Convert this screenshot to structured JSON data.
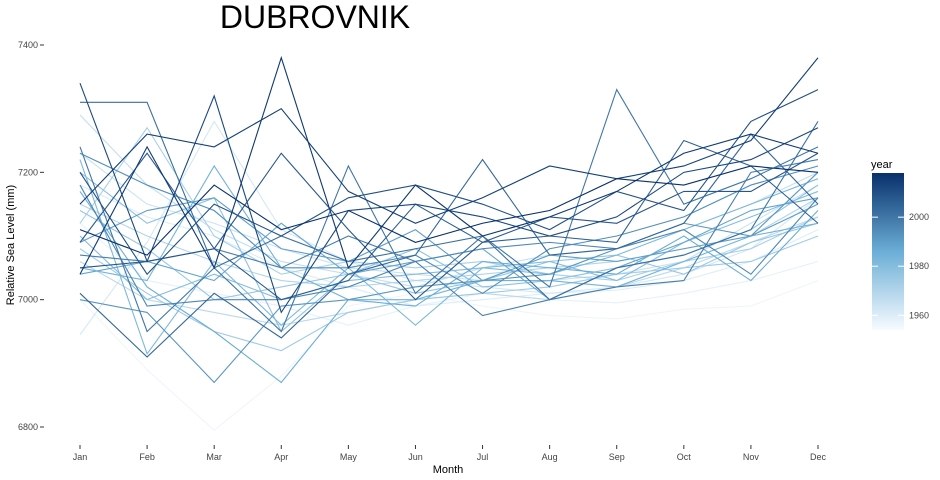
{
  "chart_data": {
    "type": "line",
    "title": "DUBROVNIK",
    "xlabel": "Month",
    "ylabel": "Relative Sea Level (mm)",
    "categories": [
      "Jan",
      "Feb",
      "Mar",
      "Apr",
      "May",
      "Jun",
      "Jul",
      "Aug",
      "Sep",
      "Oct",
      "Nov",
      "Dec"
    ],
    "yticks": [
      6800,
      7000,
      7200,
      7400
    ],
    "ylim": [
      6780,
      7400
    ],
    "grid": false,
    "legend": {
      "title": "year",
      "placement": "right",
      "type": "colorbar",
      "range": [
        1954,
        2018
      ],
      "ticks": [
        1960,
        1980,
        2000
      ],
      "color_low": "#f7fbff",
      "color_high": "#08306b"
    },
    "series": [
      {
        "year": 1956,
        "values": [
          7000,
          6890,
          6795,
          6880,
          6990,
          7010,
          6990,
          6975,
          6970,
          6985,
          6990,
          7030
        ]
      },
      {
        "year": 1958,
        "values": [
          7120,
          7030,
          7010,
          6990,
          6960,
          6990,
          7010,
          7000,
          6995,
          7010,
          7030,
          7060
        ]
      },
      {
        "year": 1960,
        "values": [
          7180,
          7130,
          7100,
          7050,
          7020,
          6990,
          7000,
          7010,
          7015,
          7030,
          7060,
          7110
        ]
      },
      {
        "year": 1962,
        "values": [
          6945,
          7090,
          7280,
          7110,
          7060,
          7030,
          7020,
          7010,
          7020,
          7040,
          7080,
          7160
        ]
      },
      {
        "year": 1964,
        "values": [
          7230,
          7150,
          7120,
          7080,
          7050,
          7040,
          7030,
          7030,
          7040,
          7060,
          7120,
          7180
        ]
      },
      {
        "year": 1966,
        "values": [
          7290,
          7180,
          7110,
          7060,
          7040,
          7020,
          7050,
          7070,
          7080,
          7110,
          7150,
          7200
        ]
      },
      {
        "year": 1968,
        "values": [
          7060,
          7000,
          6980,
          6960,
          6980,
          7000,
          7010,
          7000,
          7020,
          7050,
          7090,
          7130
        ]
      },
      {
        "year": 1970,
        "values": [
          7150,
          7100,
          7060,
          7030,
          7020,
          7030,
          7040,
          7050,
          7060,
          7080,
          7100,
          7160
        ]
      },
      {
        "year": 1972,
        "values": [
          7120,
          7270,
          7100,
          7040,
          7060,
          7050,
          7060,
          7040,
          7030,
          7060,
          7080,
          7130
        ]
      },
      {
        "year": 1974,
        "values": [
          7080,
          7010,
          6950,
          6920,
          6980,
          7000,
          7010,
          7020,
          7040,
          7050,
          7060,
          7100
        ]
      },
      {
        "year": 1976,
        "values": [
          7140,
          7080,
          7000,
          7020,
          7040,
          7010,
          7030,
          7060,
          7070,
          7040,
          7090,
          7120
        ]
      },
      {
        "year": 1978,
        "values": [
          7200,
          7120,
          7160,
          6950,
          7040,
          7080,
          7020,
          7030,
          7050,
          7070,
          7110,
          7180
        ]
      },
      {
        "year": 1980,
        "values": [
          7100,
          7000,
          7040,
          7000,
          7030,
          7040,
          7050,
          7060,
          7030,
          7090,
          7130,
          7170
        ]
      },
      {
        "year": 1982,
        "values": [
          7220,
          6915,
          7060,
          6960,
          7050,
          6960,
          7050,
          7040,
          7070,
          7110,
          7150,
          7190
        ]
      },
      {
        "year": 1984,
        "values": [
          7050,
          7030,
          7210,
          7050,
          7000,
          7000,
          7030,
          7030,
          7020,
          7060,
          7100,
          7120
        ]
      },
      {
        "year": 1986,
        "values": [
          7170,
          7020,
          6950,
          6870,
          7000,
          6990,
          7060,
          7050,
          7040,
          7100,
          7030,
          7140
        ]
      },
      {
        "year": 1988,
        "values": [
          7040,
          7060,
          7030,
          7120,
          7040,
          7060,
          7080,
          7000,
          7050,
          7090,
          7140,
          7160
        ]
      },
      {
        "year": 1990,
        "values": [
          7090,
          7140,
          7160,
          7080,
          7060,
          7110,
          7030,
          7070,
          7060,
          7080,
          7100,
          7150
        ]
      },
      {
        "year": 1992,
        "values": [
          7000,
          6980,
          6870,
          6990,
          7000,
          7020,
          7030,
          7040,
          7080,
          7120,
          7100,
          7200
        ]
      },
      {
        "year": 1994,
        "values": [
          7230,
          7180,
          7140,
          7050,
          7050,
          7070,
          7010,
          7080,
          7100,
          7130,
          7180,
          7210
        ]
      },
      {
        "year": 1996,
        "values": [
          7180,
          6990,
          7000,
          7000,
          7020,
          7060,
          7080,
          7090,
          7080,
          7110,
          7040,
          7160
        ]
      },
      {
        "year": 1998,
        "values": [
          7070,
          7060,
          7080,
          7050,
          7100,
          7060,
          6975,
          7000,
          7020,
          7030,
          7200,
          7220
        ]
      },
      {
        "year": 2000,
        "values": [
          7240,
          6950,
          7050,
          6950,
          7210,
          7010,
          7100,
          7020,
          7330,
          7150,
          7190,
          7240
        ]
      },
      {
        "year": 2002,
        "values": [
          7310,
          7310,
          7050,
          7100,
          7060,
          7080,
          7100,
          7000,
          7050,
          7070,
          7110,
          7280
        ]
      },
      {
        "year": 2004,
        "values": [
          7010,
          6910,
          7010,
          6940,
          7040,
          7070,
          7220,
          7070,
          7080,
          7120,
          7260,
          7150
        ]
      },
      {
        "year": 2006,
        "values": [
          7090,
          7230,
          7080,
          7000,
          7030,
          7150,
          7090,
          7100,
          7090,
          7250,
          7210,
          7120
        ]
      },
      {
        "year": 2008,
        "values": [
          7050,
          7060,
          7080,
          7230,
          7110,
          7000,
          7090,
          7130,
          7120,
          7170,
          7170,
          7230
        ]
      },
      {
        "year": 2010,
        "values": [
          7200,
          7040,
          7150,
          7100,
          7160,
          7180,
          7150,
          7110,
          7170,
          7140,
          7280,
          7330
        ]
      },
      {
        "year": 2012,
        "values": [
          7340,
          7060,
          7320,
          6980,
          7140,
          7150,
          7130,
          7100,
          7130,
          7200,
          7220,
          7270
        ]
      },
      {
        "year": 2014,
        "values": [
          7150,
          7260,
          7240,
          7300,
          7170,
          7120,
          7160,
          7210,
          7190,
          7210,
          7250,
          7380
        ]
      },
      {
        "year": 2016,
        "values": [
          7040,
          7240,
          7050,
          7380,
          7050,
          7180,
          7100,
          7130,
          7170,
          7230,
          7260,
          7230
        ]
      },
      {
        "year": 2018,
        "values": [
          7110,
          7070,
          7180,
          7110,
          7140,
          7090,
          7120,
          7140,
          7190,
          7180,
          7210,
          7200
        ]
      }
    ]
  }
}
